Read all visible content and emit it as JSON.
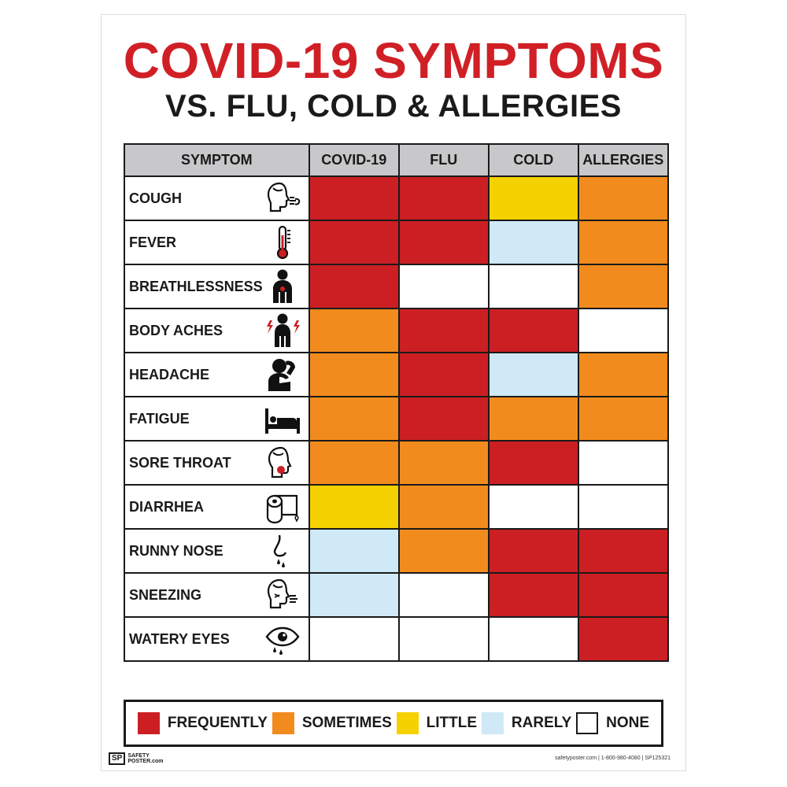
{
  "title": "COVID-19 SYMPTOMS",
  "subtitle": "VS. FLU, COLD & ALLERGIES",
  "columns": [
    "SYMPTOM",
    "COVID-19",
    "FLU",
    "COLD",
    "ALLERGIES"
  ],
  "colors": {
    "frequently": "#cc1f24",
    "sometimes": "#f28b1e",
    "little": "#f5d100",
    "rarely": "#cfe9f7",
    "none": "#ffffff"
  },
  "rows": [
    {
      "symptom": "COUGH",
      "icon": "cough-icon",
      "levels": [
        "frequently",
        "frequently",
        "little",
        "sometimes"
      ]
    },
    {
      "symptom": "FEVER",
      "icon": "thermometer-icon",
      "levels": [
        "frequently",
        "frequently",
        "rarely",
        "sometimes"
      ]
    },
    {
      "symptom": "BREATHLESSNESS",
      "icon": "chest-person-icon",
      "levels": [
        "frequently",
        "none",
        "none",
        "sometimes"
      ]
    },
    {
      "symptom": "BODY ACHES",
      "icon": "body-aches-icon",
      "levels": [
        "sometimes",
        "frequently",
        "frequently",
        "none"
      ]
    },
    {
      "symptom": "HEADACHE",
      "icon": "headache-icon",
      "levels": [
        "sometimes",
        "frequently",
        "rarely",
        "sometimes"
      ]
    },
    {
      "symptom": "FATIGUE",
      "icon": "bed-icon",
      "levels": [
        "sometimes",
        "frequently",
        "sometimes",
        "sometimes"
      ]
    },
    {
      "symptom": "SORE THROAT",
      "icon": "sore-throat-icon",
      "levels": [
        "sometimes",
        "sometimes",
        "frequently",
        "none"
      ]
    },
    {
      "symptom": "DIARRHEA",
      "icon": "toilet-paper-icon",
      "levels": [
        "little",
        "sometimes",
        "none",
        "none"
      ]
    },
    {
      "symptom": "RUNNY NOSE",
      "icon": "runny-nose-icon",
      "levels": [
        "rarely",
        "sometimes",
        "frequently",
        "frequently"
      ]
    },
    {
      "symptom": "SNEEZING",
      "icon": "sneezing-icon",
      "levels": [
        "rarely",
        "none",
        "frequently",
        "frequently"
      ]
    },
    {
      "symptom": "WATERY EYES",
      "icon": "watery-eye-icon",
      "levels": [
        "none",
        "none",
        "none",
        "frequently"
      ]
    }
  ],
  "legend": [
    {
      "key": "frequently",
      "label": "FREQUENTLY"
    },
    {
      "key": "sometimes",
      "label": "SOMETIMES"
    },
    {
      "key": "little",
      "label": "LITTLE"
    },
    {
      "key": "rarely",
      "label": "RARELY"
    },
    {
      "key": "none",
      "label": "NONE"
    }
  ],
  "brand": {
    "mark": "SP",
    "line1": "SAFETY",
    "line2": "POSTER.com"
  },
  "footer": "safetyposter.com | 1-800-980-4080 | SP125321"
}
